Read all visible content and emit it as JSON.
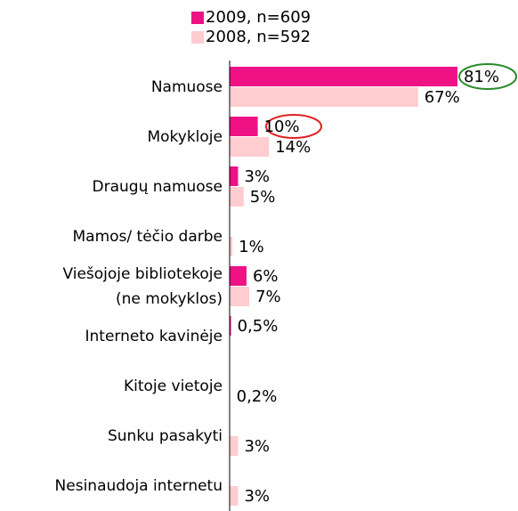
{
  "chart_data": {
    "type": "hbar",
    "categories": [
      "Namuose",
      "Mokykloje",
      "Draugų namuose",
      "Mamos/ tėčio darbe",
      "Viešojoje bibliotekoje\n(ne mokyklos)",
      "Interneto kavinėje",
      "Kitoje vietoje",
      "Sunku pasakyti",
      "Nesinaudoja internetu"
    ],
    "series": [
      {
        "name": "2009, n=609",
        "color": "#ee1285",
        "values": [
          81,
          10,
          3,
          null,
          6,
          0.5,
          null,
          null,
          null
        ],
        "value_labels": [
          "81%",
          "10%",
          "3%",
          null,
          "6%",
          "0,5%",
          null,
          null,
          null
        ]
      },
      {
        "name": "2008, n=592",
        "color": "#ffccd0",
        "values": [
          67,
          14,
          5,
          1,
          7,
          null,
          0.2,
          3,
          3
        ],
        "value_labels": [
          "67%",
          "14%",
          "5%",
          "1%",
          "7%",
          null,
          "0,2%",
          "3%",
          "3%"
        ]
      }
    ],
    "xlim": [
      0,
      100
    ],
    "legend": "top"
  }
}
